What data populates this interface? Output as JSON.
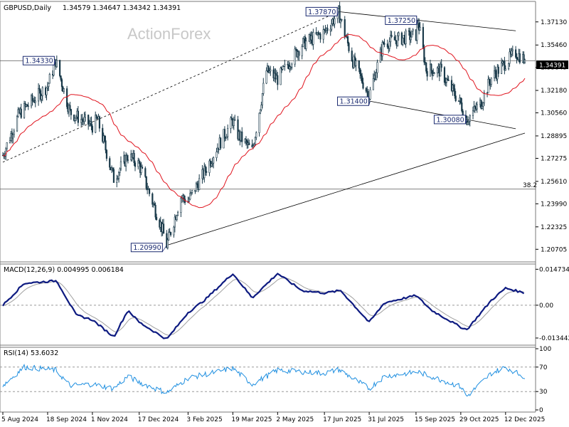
{
  "header": {
    "symbol": "GBPUSD,Daily",
    "ohlc": "1.34579 1.34647 1.34342 1.34391",
    "watermark": "ActionForex"
  },
  "colors": {
    "candles": "#1a3a4a",
    "ma": "#e0141e",
    "macd": "#0d1a80",
    "signal": "#a0a0a0",
    "rsi": "#1f8fe0",
    "levels": "#000000",
    "grid": "#7a7a7a",
    "price_label_bg": "#000000"
  },
  "chart_data": [
    {
      "type": "candlestick",
      "title": "GBPUSD,Daily",
      "ylim": [
        1.2,
        1.383
      ],
      "y_ticks": [
        "1.37130",
        "1.35460",
        "1.33845",
        "1.32180",
        "1.30560",
        "1.28895",
        "1.27275",
        "1.25610",
        "1.23990",
        "1.22325",
        "1.20705"
      ],
      "x_tick_labels": [
        "5 Aug 2024",
        "18 Sep 2024",
        "1 Nov 2024",
        "17 Dec 2024",
        "3 Feb 2025",
        "19 Mar 2025",
        "2 May 2025",
        "17 Jun 2025",
        "31 Jul 2025",
        "15 Sep 2025",
        "29 Oct 2025",
        "12 Dec 2025"
      ],
      "current_price": "1.34391",
      "close_anchors": [
        {
          "date": "5 Aug 2024",
          "close": 1.275
        },
        {
          "date": "21 Aug 2024",
          "close": 1.305
        },
        {
          "date": "18 Sep 2024",
          "close": 1.325
        },
        {
          "date": "26 Sep 2024",
          "close": 1.343
        },
        {
          "date": "10 Oct 2024",
          "close": 1.306
        },
        {
          "date": "1 Nov 2024",
          "close": 1.296
        },
        {
          "date": "6 Nov 2024",
          "close": 1.301
        },
        {
          "date": "22 Nov 2024",
          "close": 1.258
        },
        {
          "date": "6 Dec 2024",
          "close": 1.275
        },
        {
          "date": "17 Dec 2024",
          "close": 1.268
        },
        {
          "date": "8 Jan 2025",
          "close": 1.223
        },
        {
          "date": "13 Jan 2025",
          "close": 1.21
        },
        {
          "date": "27 Jan 2025",
          "close": 1.245
        },
        {
          "date": "3 Feb 2025",
          "close": 1.242
        },
        {
          "date": "17 Feb 2025",
          "close": 1.26
        },
        {
          "date": "3 Mar 2025",
          "close": 1.28
        },
        {
          "date": "19 Mar 2025",
          "close": 1.3
        },
        {
          "date": "24 Mar 2025",
          "close": 1.29
        },
        {
          "date": "7 Apr 2025",
          "close": 1.278
        },
        {
          "date": "21 Apr 2025",
          "close": 1.336
        },
        {
          "date": "2 May 2025",
          "close": 1.33
        },
        {
          "date": "26 May 2025",
          "close": 1.355
        },
        {
          "date": "17 Jun 2025",
          "close": 1.364
        },
        {
          "date": "1 Jul 2025",
          "close": 1.378
        },
        {
          "date": "15 Jul 2025",
          "close": 1.343
        },
        {
          "date": "31 Jul 2025",
          "close": 1.318
        },
        {
          "date": "14 Aug 2025",
          "close": 1.356
        },
        {
          "date": "15 Sep 2025",
          "close": 1.362
        },
        {
          "date": "17 Sep 2025",
          "close": 1.372
        },
        {
          "date": "25 Sep 2025",
          "close": 1.337
        },
        {
          "date": "9 Oct 2025",
          "close": 1.336
        },
        {
          "date": "29 Oct 2025",
          "close": 1.312
        },
        {
          "date": "4 Nov 2025",
          "close": 1.301
        },
        {
          "date": "18 Nov 2025",
          "close": 1.313
        },
        {
          "date": "28 Nov 2025",
          "close": 1.331
        },
        {
          "date": "12 Dec 2025",
          "close": 1.342
        },
        {
          "date": "22 Dec 2025",
          "close": 1.349
        },
        {
          "date": "31 Dec 2025",
          "close": 1.34391
        }
      ],
      "annotations": [
        {
          "text": "1.34330",
          "date": "26 Sep 2024",
          "price": 1.3433
        },
        {
          "text": "1.20990",
          "date": "13 Jan 2025",
          "price": 1.2099
        },
        {
          "text": "1.37870",
          "date": "1 Jul 2025",
          "price": 1.3787
        },
        {
          "text": "1.37250",
          "date": "17 Sep 2025",
          "price": 1.3725
        },
        {
          "text": "1.31400",
          "date": "1 Aug 2025",
          "price": 1.314
        },
        {
          "text": "1.30080",
          "date": "4 Nov 2025",
          "price": 1.3008
        }
      ],
      "horizontal_levels": [
        {
          "price": 1.3433
        },
        {
          "price": 1.2505,
          "label": "38.2"
        }
      ],
      "moving_average": {
        "color": "#e0141e"
      },
      "grid": false
    },
    {
      "type": "line",
      "title": "MACD(12,26,9) 0.004995 0.006184",
      "y_ticks": [
        "0.014734",
        "0.00",
        "-0.013442"
      ],
      "ylim": [
        -0.0152,
        0.016
      ],
      "series": [
        {
          "name": "MACD",
          "color": "#0d1a80"
        },
        {
          "name": "Signal",
          "color": "#a0a0a0"
        }
      ],
      "anchors": [
        {
          "date": "5 Aug 2024",
          "value": 0.0
        },
        {
          "date": "26 Aug 2024",
          "value": 0.009
        },
        {
          "date": "27 Sep 2024",
          "value": 0.01
        },
        {
          "date": "16 Oct 2024",
          "value": -0.004
        },
        {
          "date": "1 Nov 2024",
          "value": -0.006
        },
        {
          "date": "22 Nov 2024",
          "value": -0.013
        },
        {
          "date": "6 Dec 2024",
          "value": -0.002
        },
        {
          "date": "17 Dec 2024",
          "value": -0.007
        },
        {
          "date": "13 Jan 2025",
          "value": -0.014
        },
        {
          "date": "3 Feb 2025",
          "value": -0.003
        },
        {
          "date": "19 Feb 2025",
          "value": 0.002
        },
        {
          "date": "19 Mar 2025",
          "value": 0.013
        },
        {
          "date": "7 Apr 2025",
          "value": 0.003
        },
        {
          "date": "2 May 2025",
          "value": 0.013
        },
        {
          "date": "26 May 2025",
          "value": 0.006
        },
        {
          "date": "17 Jun 2025",
          "value": 0.005
        },
        {
          "date": "3 Jul 2025",
          "value": 0.006
        },
        {
          "date": "31 Jul 2025",
          "value": -0.007
        },
        {
          "date": "15 Aug 2025",
          "value": 0.001
        },
        {
          "date": "15 Sep 2025",
          "value": 0.004
        },
        {
          "date": "30 Sep 2025",
          "value": -0.002
        },
        {
          "date": "29 Oct 2025",
          "value": -0.009
        },
        {
          "date": "4 Nov 2025",
          "value": -0.01
        },
        {
          "date": "28 Nov 2025",
          "value": 0.002
        },
        {
          "date": "12 Dec 2025",
          "value": 0.007
        },
        {
          "date": "31 Dec 2025",
          "value": 0.004995
        }
      ]
    },
    {
      "type": "line",
      "title": "RSI(14) 53.6032",
      "y_ticks": [
        "100",
        "70",
        "30",
        "0"
      ],
      "ylim": [
        0,
        100
      ],
      "levels": [
        70,
        30
      ],
      "series": [
        {
          "name": "RSI",
          "color": "#1f8fe0"
        }
      ],
      "anchors": [
        {
          "date": "5 Aug 2024",
          "value": 40
        },
        {
          "date": "26 Aug 2024",
          "value": 70
        },
        {
          "date": "26 Sep 2024",
          "value": 65
        },
        {
          "date": "10 Oct 2024",
          "value": 40
        },
        {
          "date": "1 Nov 2024",
          "value": 42
        },
        {
          "date": "22 Nov 2024",
          "value": 35
        },
        {
          "date": "6 Dec 2024",
          "value": 55
        },
        {
          "date": "17 Dec 2024",
          "value": 45
        },
        {
          "date": "13 Jan 2025",
          "value": 28
        },
        {
          "date": "3 Feb 2025",
          "value": 52
        },
        {
          "date": "19 Mar 2025",
          "value": 68
        },
        {
          "date": "7 Apr 2025",
          "value": 42
        },
        {
          "date": "2 May 2025",
          "value": 65
        },
        {
          "date": "17 Jun 2025",
          "value": 60
        },
        {
          "date": "1 Jul 2025",
          "value": 66
        },
        {
          "date": "31 Jul 2025",
          "value": 35
        },
        {
          "date": "15 Aug 2025",
          "value": 55
        },
        {
          "date": "17 Sep 2025",
          "value": 62
        },
        {
          "date": "29 Oct 2025",
          "value": 38
        },
        {
          "date": "4 Nov 2025",
          "value": 22
        },
        {
          "date": "28 Nov 2025",
          "value": 60
        },
        {
          "date": "12 Dec 2025",
          "value": 70
        },
        {
          "date": "31 Dec 2025",
          "value": 53.6032
        }
      ]
    }
  ]
}
